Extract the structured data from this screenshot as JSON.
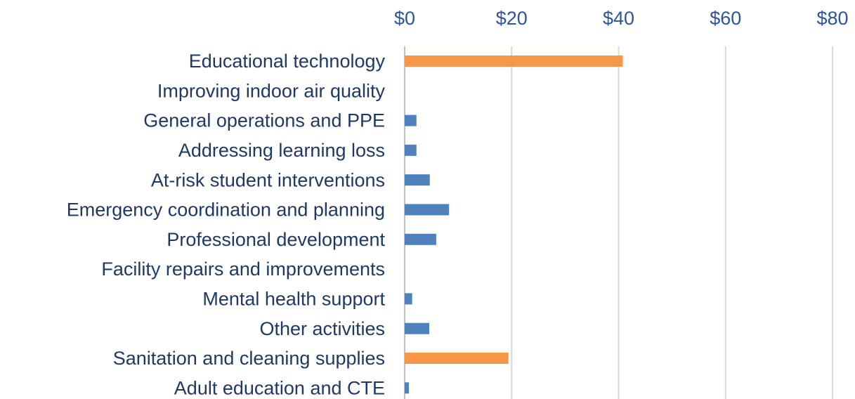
{
  "chart_data": {
    "type": "bar",
    "orientation": "horizontal",
    "categories": [
      "Educational technology",
      "Improving indoor air quality",
      "General operations and PPE",
      "Addressing learning loss",
      "At-risk student interventions",
      "Emergency coordination and planning",
      "Professional development",
      "Facility repairs and improvements",
      "Mental health support",
      "Other activities",
      "Sanitation and cleaning supplies",
      "Adult education and CTE"
    ],
    "values": [
      40.8,
      0,
      2.2,
      2.2,
      4.7,
      8.3,
      5.9,
      0,
      1.4,
      4.6,
      19.4,
      0.8
    ],
    "colors": [
      "#f79646",
      "#4f81bd",
      "#4f81bd",
      "#4f81bd",
      "#4f81bd",
      "#4f81bd",
      "#4f81bd",
      "#4f81bd",
      "#4f81bd",
      "#4f81bd",
      "#f79646",
      "#4f81bd"
    ],
    "xlim": [
      0,
      80
    ],
    "xticks": [
      {
        "value": 0,
        "label": "$0"
      },
      {
        "value": 20,
        "label": "$20"
      },
      {
        "value": 40,
        "label": "$40"
      },
      {
        "value": 60,
        "label": "$60"
      },
      {
        "value": 80,
        "label": "$80"
      }
    ],
    "grid": true
  }
}
